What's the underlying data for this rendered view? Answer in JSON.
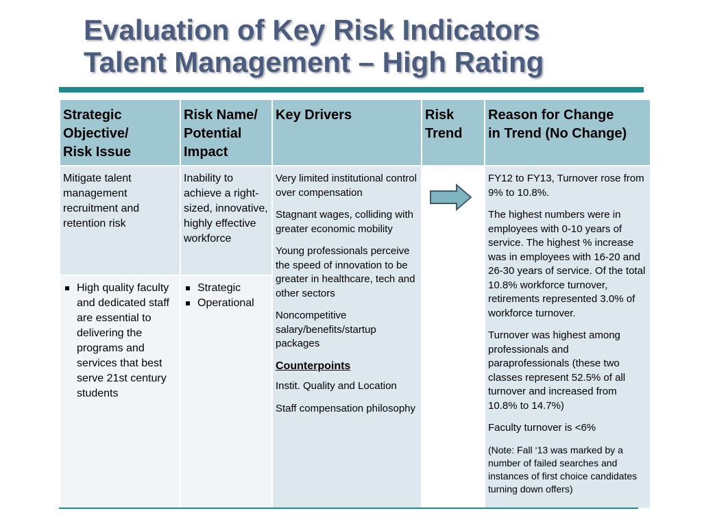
{
  "title": {
    "line1": "Evaluation of Key Risk Indicators",
    "line2": "Talent Management – High Rating"
  },
  "table": {
    "headers": {
      "col1": [
        "Strategic",
        "Objective/",
        "Risk Issue"
      ],
      "col2": [
        "Risk Name/",
        "Potential",
        "Impact"
      ],
      "col3": "Key Drivers",
      "col4": [
        "Risk",
        "Trend"
      ],
      "col5": [
        "Reason for Change",
        "in Trend (No Change)"
      ]
    },
    "objective_text": "Mitigate talent management recruitment and retention risk",
    "risk_name_text": "Inability to achieve a right-sized, innovative, highly effective workforce",
    "objective_bullets": [
      "High quality faculty and dedicated staff are essential to delivering the programs and services that best serve 21st century students"
    ],
    "impact_bullets": [
      "Strategic",
      "Operational"
    ],
    "key_drivers": [
      "Very limited institutional control over compensation",
      "Stagnant wages, colliding with greater economic mobility",
      "Young professionals perceive the speed of innovation to be greater in healthcare, tech and other sectors",
      "Noncompetitive salary/benefits/startup packages"
    ],
    "counterpoints_heading": "Counterpoints",
    "counterpoints": [
      "Instit. Quality and Location",
      "Staff compensation philosophy"
    ],
    "risk_trend_icon": "right-arrow-icon",
    "reasons": [
      "FY12 to FY13, Turnover rose from 9% to 10.8%.",
      "The highest numbers were in employees with 0-10 years of service.  The highest % increase was in employees with 16-20 and 26-30 years of service. Of the total 10.8% workforce turnover, retirements represented 3.0% of workforce turnover.",
      "Turnover was highest among professionals and paraprofessionals (these two classes represent 52.5% of all turnover and increased from 10.8% to 14.7%)",
      "Faculty turnover is <6%"
    ],
    "note": "(Note:  Fall ‘13 was marked by a number of failed searches and instances of first choice candidates turning down offers)"
  },
  "colors": {
    "title": "#4a5d80",
    "rule": "#1b8b8b",
    "header_fill": "#9fc7d1",
    "body_fill": "#dce8ee",
    "arrow_fill": "#7fb5c0"
  }
}
